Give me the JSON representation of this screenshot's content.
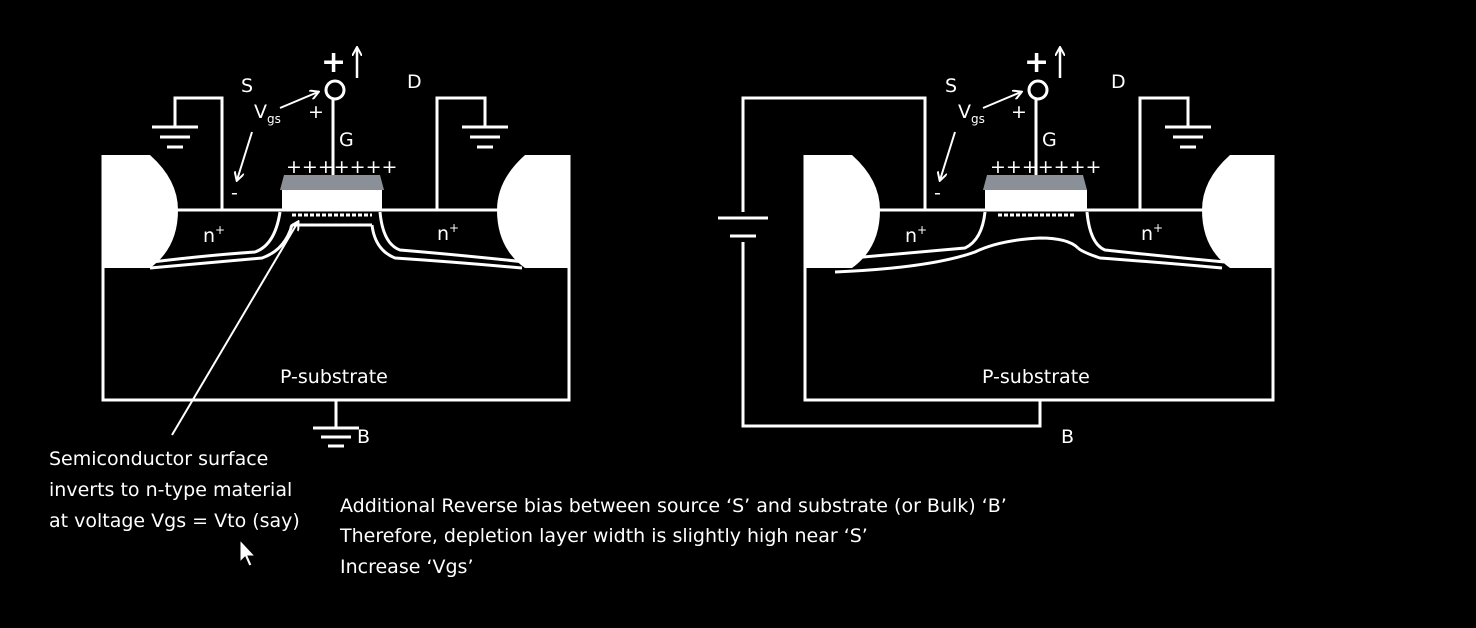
{
  "left_diagram": {
    "source_label": "S",
    "drain_label": "D",
    "gate_label": "G",
    "vgs_main": "V",
    "vgs_sub": "gs",
    "plus_big": "+",
    "plus_small": "+",
    "minus_small": "-",
    "gate_charges": "+++++++",
    "n_left": "n",
    "n_right": "n",
    "n_sup": "+",
    "substrate_label": "P-substrate",
    "bulk_label": "B",
    "note_lines": [
      "Semiconductor surface",
      "inverts to n-type material",
      "at voltage Vgs = Vto (say)"
    ]
  },
  "right_diagram": {
    "source_label": "S",
    "drain_label": "D",
    "gate_label": "G",
    "vgs_main": "V",
    "vgs_sub": "gs",
    "plus_big": "+",
    "plus_small": "+",
    "minus_small": "-",
    "gate_charges": "+++++++",
    "n_left": "n",
    "n_right": "n",
    "n_sup": "+",
    "substrate_label": "P-substrate",
    "bulk_label": "B"
  },
  "caption_lines": [
    "Additional Reverse bias between source ‘S’ and substrate (or Bulk) ‘B’",
    "Therefore, depletion layer width is slightly high near ‘S’",
    "Increase ‘Vgs’"
  ],
  "colors": {
    "background": "#000000",
    "line": "#ffffff",
    "gate_oxide": "#8a8f98"
  }
}
